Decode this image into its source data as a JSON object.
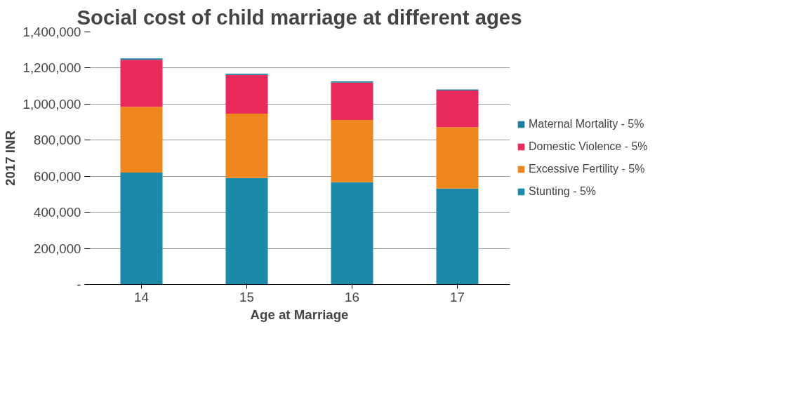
{
  "chart_data": {
    "type": "bar",
    "stacked": true,
    "title": "Social cost of child marriage at different ages",
    "xlabel": "Age at Marriage",
    "ylabel": "2017 INR",
    "categories": [
      "14",
      "15",
      "16",
      "17"
    ],
    "series": [
      {
        "name": "Stunting - 5%",
        "color": "#1a8aa8",
        "values": [
          620000,
          590000,
          567000,
          532000
        ]
      },
      {
        "name": "Excessive Fertility - 5%",
        "color": "#f0871c",
        "values": [
          365000,
          357000,
          345000,
          340000
        ]
      },
      {
        "name": "Domestic Violence - 5%",
        "color": "#ea2a5a",
        "values": [
          260000,
          215000,
          207000,
          203000
        ]
      },
      {
        "name": "Maternal Mortality - 5%",
        "color": "#1e7fa0",
        "values": [
          8000,
          7000,
          7000,
          6000
        ]
      }
    ],
    "ylim": [
      0,
      1400000
    ],
    "yticks": [
      {
        "value": 0,
        "label": "-"
      },
      {
        "value": 200000,
        "label": "200,000"
      },
      {
        "value": 400000,
        "label": "400,000"
      },
      {
        "value": 600000,
        "label": "600,000"
      },
      {
        "value": 800000,
        "label": "800,000"
      },
      {
        "value": 1000000,
        "label": "1,000,000"
      },
      {
        "value": 1200000,
        "label": "1,200,000"
      },
      {
        "value": 1400000,
        "label": "1,400,000"
      }
    ],
    "grid": "y",
    "legend": "right"
  }
}
